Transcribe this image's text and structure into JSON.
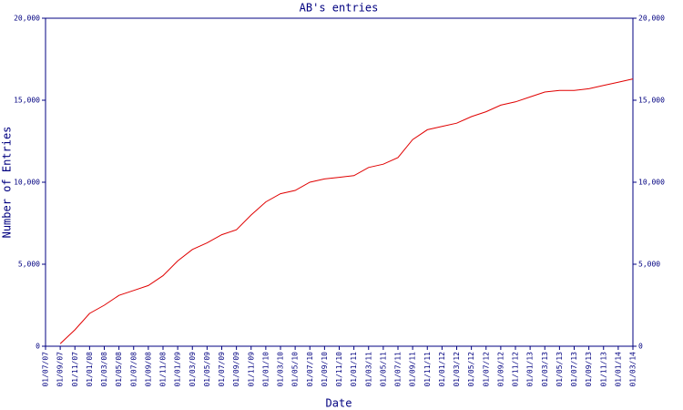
{
  "chart_data": {
    "type": "line",
    "title": "AB's entries",
    "xlabel": "Date",
    "ylabel": "Number of Entries",
    "categories": [
      "01/07/07",
      "01/09/07",
      "01/11/07",
      "01/01/08",
      "01/03/08",
      "01/05/08",
      "01/07/08",
      "01/09/08",
      "01/11/08",
      "01/01/09",
      "01/03/09",
      "01/05/09",
      "01/07/09",
      "01/09/09",
      "01/11/09",
      "01/01/10",
      "01/03/10",
      "01/05/10",
      "01/07/10",
      "01/09/10",
      "01/11/10",
      "01/01/11",
      "01/03/11",
      "01/05/11",
      "01/07/11",
      "01/09/11",
      "01/11/11",
      "01/01/12",
      "01/03/12",
      "01/05/12",
      "01/07/12",
      "01/09/12",
      "01/11/12",
      "01/01/13",
      "01/03/13",
      "01/05/13",
      "01/07/13",
      "01/09/13",
      "01/11/13",
      "01/01/14",
      "01/03/14"
    ],
    "series": [
      {
        "name": "AB",
        "color": "#e00000",
        "values": [
          null,
          150,
          1000,
          2000,
          2500,
          3100,
          3400,
          3700,
          4300,
          5200,
          5900,
          6300,
          6800,
          7100,
          8000,
          8800,
          9300,
          9500,
          10000,
          10200,
          10300,
          10400,
          10900,
          11100,
          11500,
          12600,
          13200,
          13400,
          13600,
          14000,
          14300,
          14700,
          14900,
          15200,
          15500,
          15600,
          15600,
          15700,
          15900,
          16100,
          16300
        ]
      }
    ],
    "ylim": [
      0,
      20000
    ],
    "yticks": [
      0,
      {
        "value": 5000,
        "label": "5,000"
      },
      {
        "value": 10000,
        "label": "10,000"
      },
      {
        "value": 15000,
        "label": "15,000"
      },
      {
        "value": 20000,
        "label": "20,000"
      }
    ],
    "grid": false
  }
}
